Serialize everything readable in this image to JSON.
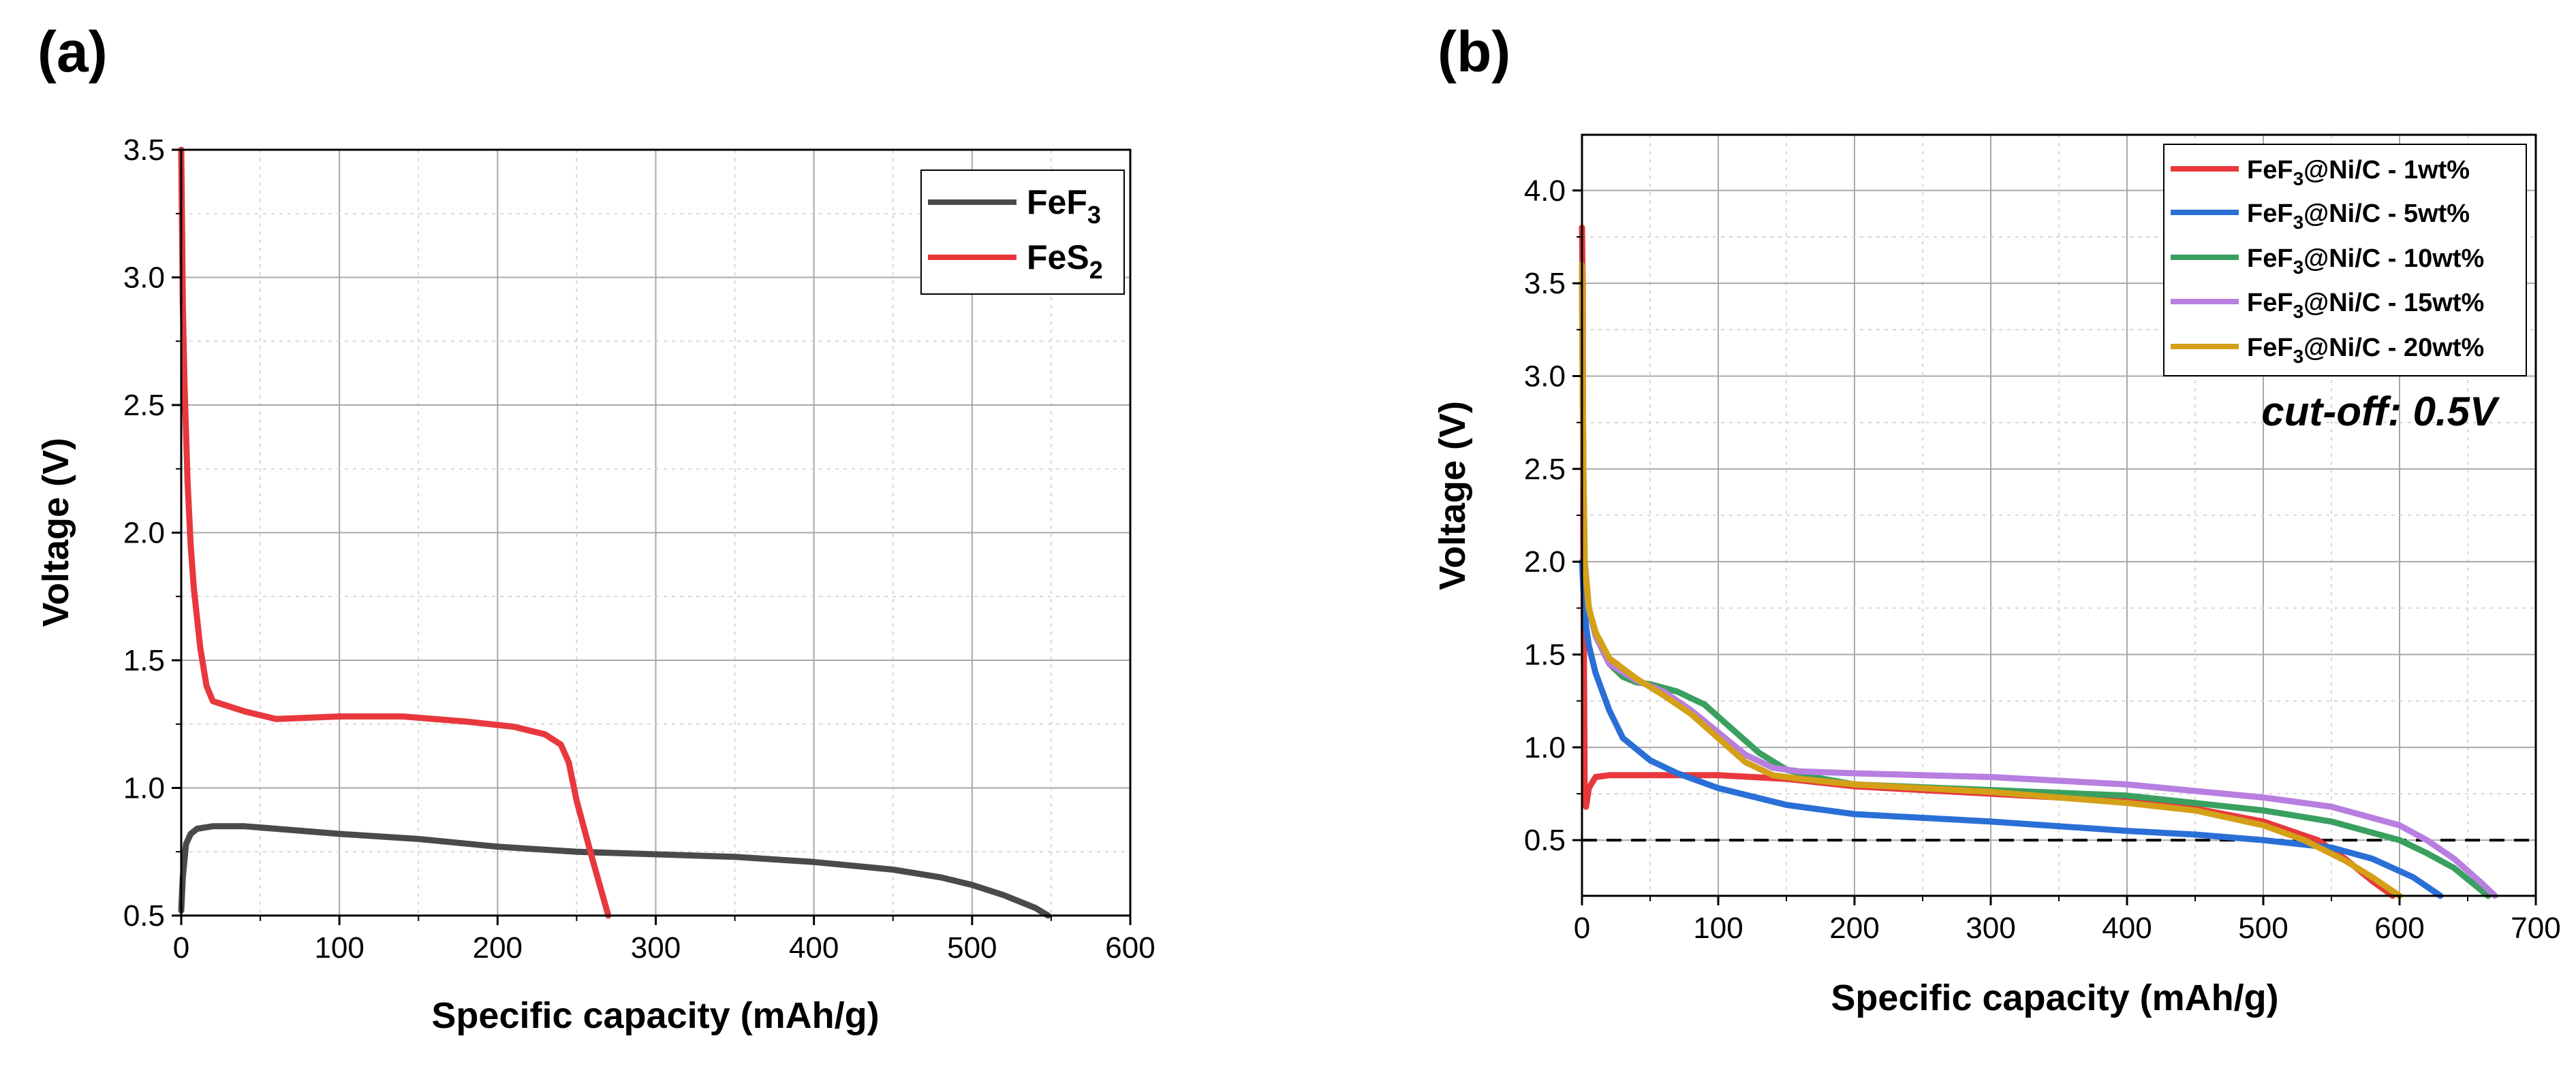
{
  "chart_data": [
    {
      "panel_label": "(a)",
      "type": "line",
      "xlabel": "Specific capacity (mAh/g)",
      "ylabel": "Voltage (V)",
      "xlim": [
        0,
        600
      ],
      "ylim": [
        0.5,
        3.5
      ],
      "xticks": [
        0,
        100,
        200,
        300,
        400,
        500,
        600
      ],
      "yticks": [
        0.5,
        1.0,
        1.5,
        2.0,
        2.5,
        3.0,
        3.5
      ],
      "xtick_labels": [
        "0",
        "100",
        "200",
        "300",
        "400",
        "500",
        "600"
      ],
      "ytick_labels": [
        "0.5",
        "1.0",
        "1.5",
        "2.0",
        "2.5",
        "3.0",
        "3.5"
      ],
      "grid": true,
      "legend_position": "top-right",
      "series": [
        {
          "name": "FeF3",
          "label_main": "FeF",
          "label_sub": "3",
          "color": "#4a4a4a",
          "x": [
            0,
            1,
            3,
            6,
            10,
            20,
            40,
            60,
            100,
            150,
            200,
            250,
            300,
            350,
            400,
            450,
            480,
            500,
            520,
            540,
            548
          ],
          "y": [
            0.52,
            0.65,
            0.78,
            0.82,
            0.84,
            0.85,
            0.85,
            0.84,
            0.82,
            0.8,
            0.77,
            0.75,
            0.74,
            0.73,
            0.71,
            0.68,
            0.65,
            0.62,
            0.58,
            0.53,
            0.5
          ]
        },
        {
          "name": "FeS2",
          "label_main": "FeS",
          "label_sub": "2",
          "color": "#e8383d",
          "x": [
            0,
            0.5,
            1,
            2,
            4,
            6,
            8,
            12,
            16,
            20,
            25,
            40,
            60,
            100,
            140,
            180,
            210,
            230,
            240,
            245,
            250,
            260,
            270
          ],
          "y": [
            3.5,
            3.2,
            2.9,
            2.6,
            2.2,
            1.95,
            1.78,
            1.55,
            1.4,
            1.34,
            1.33,
            1.3,
            1.27,
            1.28,
            1.28,
            1.26,
            1.24,
            1.21,
            1.17,
            1.1,
            0.95,
            0.72,
            0.5
          ]
        }
      ]
    },
    {
      "panel_label": "(b)",
      "type": "line",
      "xlabel": "Specific capacity (mAh/g)",
      "ylabel": "Voltage (V)",
      "xlim": [
        0,
        700
      ],
      "ylim": [
        0.2,
        4.3
      ],
      "xticks": [
        0,
        100,
        200,
        300,
        400,
        500,
        600,
        700
      ],
      "yticks": [
        0.5,
        1.0,
        1.5,
        2.0,
        2.5,
        3.0,
        3.5,
        4.0
      ],
      "xtick_labels": [
        "0",
        "100",
        "200",
        "300",
        "400",
        "500",
        "600",
        "700"
      ],
      "ytick_labels": [
        "0.5",
        "1.0",
        "1.5",
        "2.0",
        "2.5",
        "3.0",
        "3.5",
        "4.0"
      ],
      "grid": true,
      "legend_position": "top-right",
      "annotation": "cut-off: 0.5V",
      "cutoff_voltage": 0.5,
      "series": [
        {
          "name": "FeF3@Ni/C - 1wt%",
          "label_pre": "FeF",
          "label_sub": "3",
          "label_post": "@Ni/C - 1wt%",
          "color": "#e8383d",
          "x": [
            0,
            0.5,
            1,
            2,
            3,
            5,
            10,
            20,
            50,
            100,
            150,
            200,
            250,
            300,
            350,
            400,
            450,
            500,
            540,
            560,
            580,
            595
          ],
          "y": [
            3.8,
            3.5,
            2.0,
            0.75,
            0.68,
            0.78,
            0.84,
            0.85,
            0.85,
            0.85,
            0.83,
            0.79,
            0.77,
            0.75,
            0.73,
            0.71,
            0.67,
            0.6,
            0.5,
            0.4,
            0.28,
            0.2
          ]
        },
        {
          "name": "FeF3@Ni/C - 5wt%",
          "label_pre": "FeF",
          "label_sub": "3",
          "label_post": "@Ni/C - 5wt%",
          "color": "#2a6fd6",
          "x": [
            0,
            1,
            3,
            5,
            10,
            20,
            30,
            50,
            70,
            100,
            150,
            200,
            300,
            400,
            450,
            500,
            550,
            580,
            610,
            630
          ],
          "y": [
            2.0,
            1.85,
            1.65,
            1.55,
            1.4,
            1.2,
            1.05,
            0.93,
            0.86,
            0.78,
            0.69,
            0.64,
            0.6,
            0.55,
            0.53,
            0.5,
            0.46,
            0.4,
            0.3,
            0.2
          ]
        },
        {
          "name": "FeF3@Ni/C - 10wt%",
          "label_pre": "FeF",
          "label_sub": "3",
          "label_post": "@Ni/C - 10wt%",
          "color": "#3aa060",
          "x": [
            0,
            1,
            2,
            5,
            10,
            20,
            30,
            40,
            50,
            70,
            90,
            110,
            130,
            150,
            170,
            200,
            300,
            400,
            500,
            550,
            600,
            620,
            640,
            665
          ],
          "y": [
            3.5,
            2.5,
            2.0,
            1.75,
            1.6,
            1.45,
            1.38,
            1.35,
            1.34,
            1.3,
            1.23,
            1.1,
            0.97,
            0.88,
            0.84,
            0.8,
            0.77,
            0.74,
            0.66,
            0.6,
            0.5,
            0.43,
            0.35,
            0.2
          ]
        },
        {
          "name": "FeF3@Ni/C - 15wt%",
          "label_pre": "FeF",
          "label_sub": "3",
          "label_post": "@Ni/C - 15wt%",
          "color": "#b87ee0",
          "x": [
            0,
            1,
            2,
            5,
            10,
            20,
            40,
            60,
            80,
            100,
            120,
            140,
            160,
            200,
            300,
            400,
            500,
            550,
            600,
            620,
            640,
            660,
            670
          ],
          "y": [
            3.5,
            2.5,
            2.0,
            1.75,
            1.6,
            1.45,
            1.36,
            1.3,
            1.2,
            1.08,
            0.96,
            0.89,
            0.87,
            0.86,
            0.84,
            0.8,
            0.73,
            0.68,
            0.58,
            0.5,
            0.4,
            0.27,
            0.2
          ]
        },
        {
          "name": "FeF3@Ni/C - 20wt%",
          "label_pre": "FeF",
          "label_sub": "3",
          "label_post": "@Ni/C - 20wt%",
          "color": "#d4a017",
          "x": [
            0,
            1,
            2,
            5,
            10,
            20,
            40,
            60,
            80,
            100,
            120,
            140,
            160,
            200,
            300,
            400,
            450,
            500,
            530,
            560,
            580,
            600
          ],
          "y": [
            3.6,
            2.5,
            2.0,
            1.75,
            1.62,
            1.48,
            1.37,
            1.28,
            1.18,
            1.05,
            0.92,
            0.85,
            0.83,
            0.8,
            0.76,
            0.7,
            0.66,
            0.58,
            0.5,
            0.39,
            0.3,
            0.2
          ]
        }
      ]
    }
  ]
}
